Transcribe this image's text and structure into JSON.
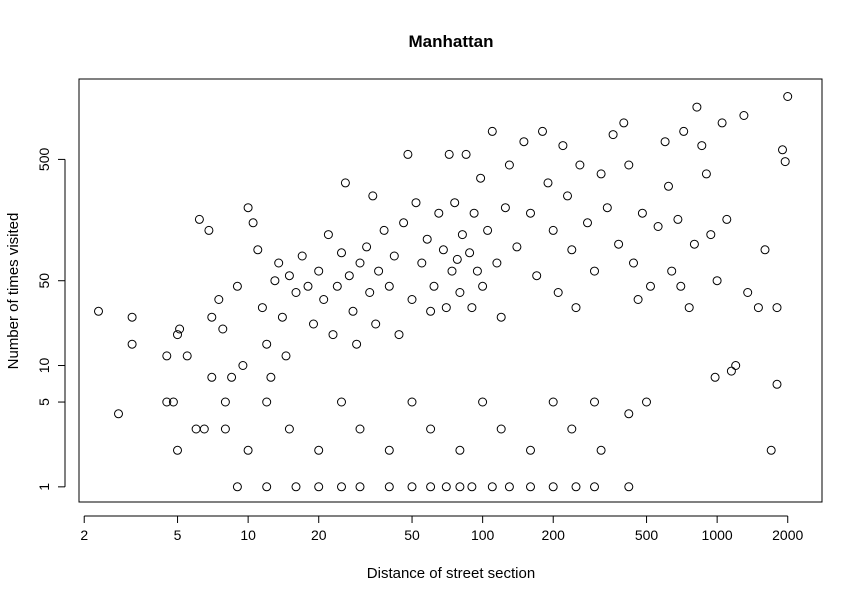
{
  "chart_data": {
    "type": "scatter",
    "title": "Manhattan",
    "xlabel": "Distance of street section",
    "ylabel": "Number of times visited",
    "x_scale": "log",
    "y_scale": "log",
    "xlim": [
      1.9,
      2800
    ],
    "ylim": [
      0.75,
      2300
    ],
    "x_ticks": [
      2,
      5,
      10,
      20,
      50,
      100,
      200,
      500,
      1000,
      2000
    ],
    "y_ticks": [
      1,
      5,
      10,
      50,
      500
    ],
    "x_tick_labels": [
      "2",
      "5",
      "10",
      "20",
      "50",
      "100",
      "200",
      "500",
      "1000",
      "2000"
    ],
    "y_tick_labels": [
      "1",
      "5",
      "10",
      "50",
      "500"
    ],
    "grid": false,
    "marker": "open-circle",
    "point_color": "#000000",
    "points": [
      [
        2.3,
        28
      ],
      [
        3.2,
        25
      ],
      [
        3.2,
        15
      ],
      [
        2.8,
        4
      ],
      [
        4.5,
        5
      ],
      [
        4.8,
        5
      ],
      [
        5,
        18
      ],
      [
        5.1,
        20
      ],
      [
        4.5,
        12
      ],
      [
        5.5,
        12
      ],
      [
        6,
        3
      ],
      [
        6.5,
        3
      ],
      [
        6.2,
        160
      ],
      [
        6.8,
        130
      ],
      [
        7,
        25
      ],
      [
        7,
        8
      ],
      [
        7.5,
        35
      ],
      [
        7.8,
        20
      ],
      [
        8,
        5
      ],
      [
        8.5,
        8
      ],
      [
        9,
        45
      ],
      [
        9.5,
        10
      ],
      [
        10,
        200
      ],
      [
        10.5,
        150
      ],
      [
        11,
        90
      ],
      [
        11.5,
        30
      ],
      [
        12,
        15
      ],
      [
        12.5,
        8
      ],
      [
        13,
        50
      ],
      [
        13.5,
        70
      ],
      [
        14,
        25
      ],
      [
        14.5,
        12
      ],
      [
        15,
        55
      ],
      [
        16,
        40
      ],
      [
        17,
        80
      ],
      [
        18,
        45
      ],
      [
        19,
        22
      ],
      [
        20,
        60
      ],
      [
        21,
        35
      ],
      [
        22,
        120
      ],
      [
        23,
        18
      ],
      [
        24,
        45
      ],
      [
        25,
        85
      ],
      [
        26,
        320
      ],
      [
        27,
        55
      ],
      [
        28,
        28
      ],
      [
        29,
        15
      ],
      [
        30,
        70
      ],
      [
        32,
        95
      ],
      [
        33,
        40
      ],
      [
        34,
        250
      ],
      [
        35,
        22
      ],
      [
        36,
        60
      ],
      [
        38,
        130
      ],
      [
        40,
        45
      ],
      [
        42,
        80
      ],
      [
        44,
        18
      ],
      [
        46,
        150
      ],
      [
        48,
        550
      ],
      [
        50,
        35
      ],
      [
        52,
        220
      ],
      [
        55,
        70
      ],
      [
        58,
        110
      ],
      [
        60,
        28
      ],
      [
        62,
        45
      ],
      [
        65,
        180
      ],
      [
        68,
        90
      ],
      [
        70,
        30
      ],
      [
        72,
        550
      ],
      [
        74,
        60
      ],
      [
        76,
        220
      ],
      [
        78,
        75
      ],
      [
        80,
        40
      ],
      [
        82,
        120
      ],
      [
        85,
        550
      ],
      [
        88,
        85
      ],
      [
        90,
        30
      ],
      [
        92,
        180
      ],
      [
        95,
        60
      ],
      [
        98,
        350
      ],
      [
        100,
        45
      ],
      [
        105,
        130
      ],
      [
        110,
        850
      ],
      [
        115,
        70
      ],
      [
        120,
        25
      ],
      [
        125,
        200
      ],
      [
        130,
        450
      ],
      [
        140,
        95
      ],
      [
        150,
        700
      ],
      [
        160,
        180
      ],
      [
        170,
        55
      ],
      [
        180,
        850
      ],
      [
        190,
        320
      ],
      [
        200,
        130
      ],
      [
        210,
        40
      ],
      [
        220,
        650
      ],
      [
        230,
        250
      ],
      [
        240,
        90
      ],
      [
        250,
        30
      ],
      [
        260,
        450
      ],
      [
        280,
        150
      ],
      [
        300,
        60
      ],
      [
        320,
        380
      ],
      [
        340,
        200
      ],
      [
        360,
        800
      ],
      [
        380,
        100
      ],
      [
        400,
        1000
      ],
      [
        420,
        450
      ],
      [
        440,
        70
      ],
      [
        460,
        35
      ],
      [
        480,
        180
      ],
      [
        500,
        5
      ],
      [
        520,
        45
      ],
      [
        560,
        140
      ],
      [
        600,
        700
      ],
      [
        620,
        300
      ],
      [
        640,
        60
      ],
      [
        680,
        160
      ],
      [
        700,
        45
      ],
      [
        720,
        850
      ],
      [
        760,
        30
      ],
      [
        800,
        100
      ],
      [
        820,
        1350
      ],
      [
        860,
        650
      ],
      [
        900,
        380
      ],
      [
        940,
        120
      ],
      [
        980,
        8
      ],
      [
        1000,
        50
      ],
      [
        1050,
        1000
      ],
      [
        1100,
        160
      ],
      [
        1150,
        9
      ],
      [
        1200,
        10
      ],
      [
        1300,
        1150
      ],
      [
        1350,
        40
      ],
      [
        1500,
        30
      ],
      [
        1600,
        90
      ],
      [
        1700,
        2
      ],
      [
        1800,
        30
      ],
      [
        1800,
        7
      ],
      [
        1900,
        600
      ],
      [
        1950,
        480
      ],
      [
        2000,
        1650
      ],
      [
        9,
        1
      ],
      [
        12,
        1
      ],
      [
        16,
        1
      ],
      [
        20,
        1
      ],
      [
        25,
        1
      ],
      [
        30,
        1
      ],
      [
        40,
        1
      ],
      [
        50,
        1
      ],
      [
        60,
        1
      ],
      [
        70,
        1
      ],
      [
        80,
        1
      ],
      [
        90,
        1
      ],
      [
        110,
        1
      ],
      [
        130,
        1
      ],
      [
        160,
        1
      ],
      [
        200,
        1
      ],
      [
        250,
        1
      ],
      [
        300,
        1
      ],
      [
        420,
        1
      ],
      [
        5,
        2
      ],
      [
        10,
        2
      ],
      [
        20,
        2
      ],
      [
        40,
        2
      ],
      [
        80,
        2
      ],
      [
        160,
        2
      ],
      [
        320,
        2
      ],
      [
        8,
        3
      ],
      [
        15,
        3
      ],
      [
        30,
        3
      ],
      [
        60,
        3
      ],
      [
        120,
        3
      ],
      [
        240,
        3
      ],
      [
        420,
        4
      ],
      [
        12,
        5
      ],
      [
        25,
        5
      ],
      [
        50,
        5
      ],
      [
        100,
        5
      ],
      [
        200,
        5
      ],
      [
        300,
        5
      ]
    ]
  }
}
